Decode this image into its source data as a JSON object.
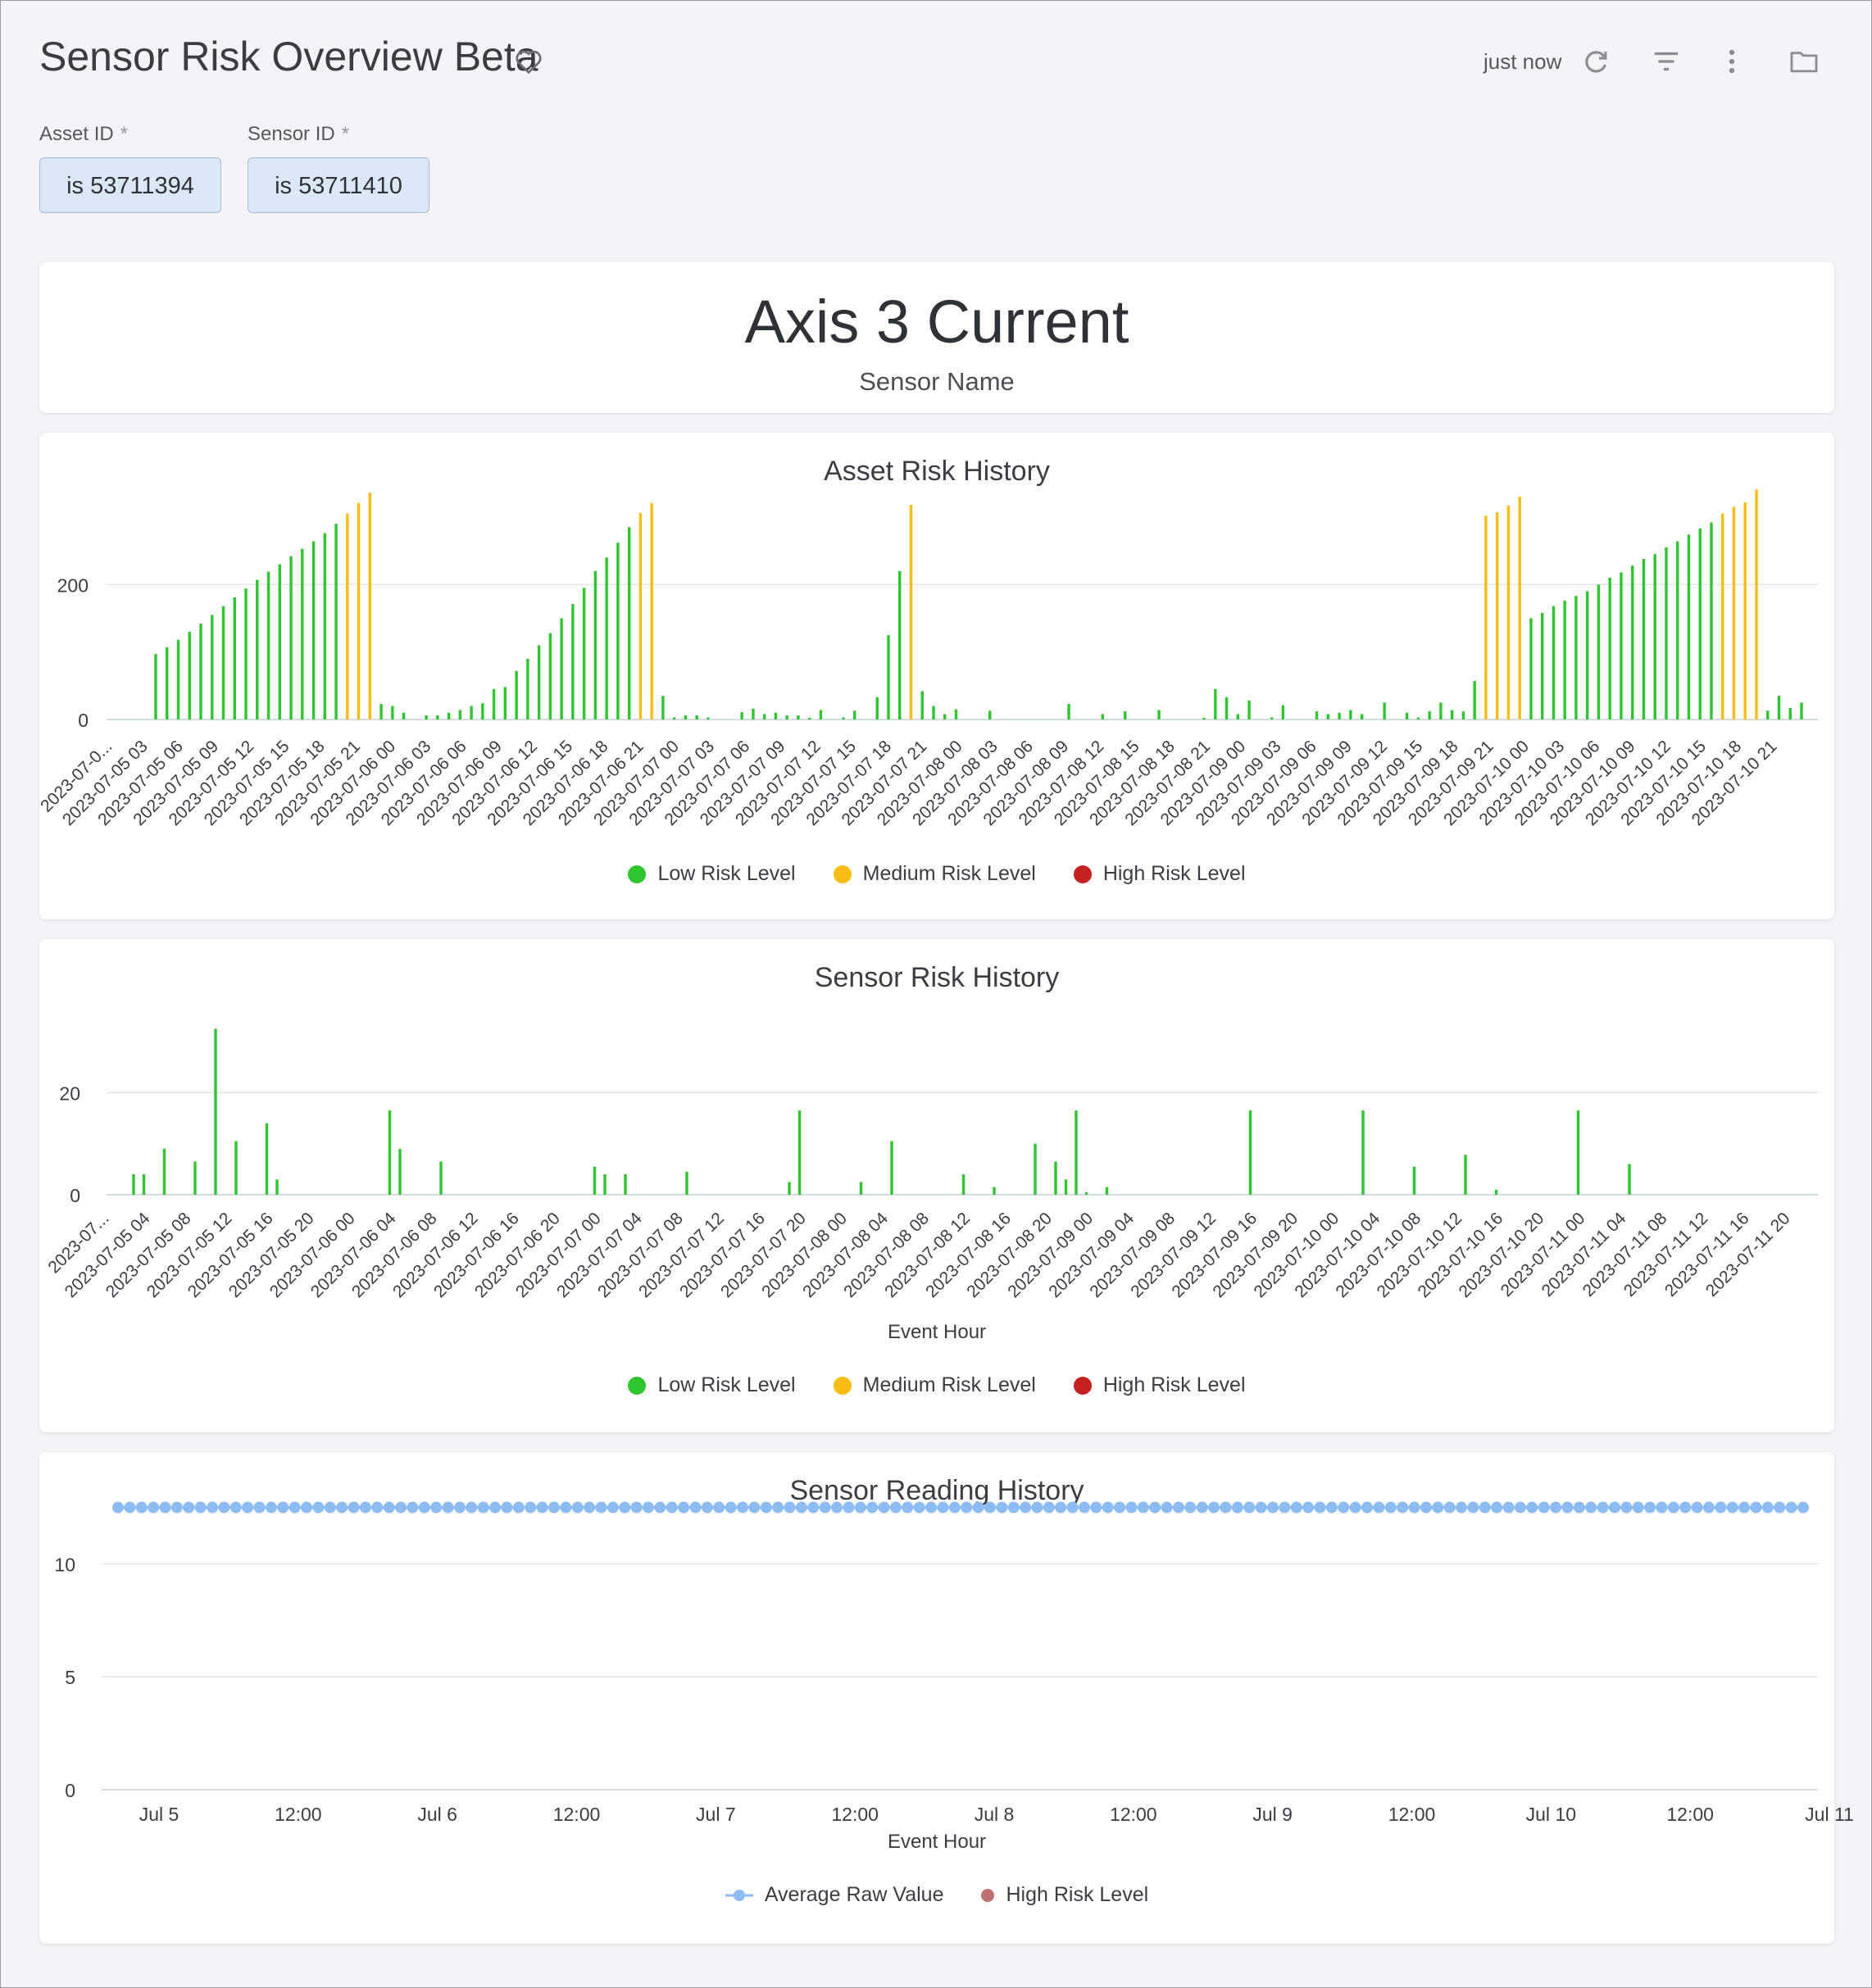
{
  "header": {
    "title": "Sensor Risk Overview Beta",
    "refreshed": "just now"
  },
  "filters": [
    {
      "label": "Asset ID",
      "required": "*",
      "value": "is 53711394"
    },
    {
      "label": "Sensor ID",
      "required": "*",
      "value": "is 53711410"
    }
  ],
  "kpi": {
    "value": "Axis 3 Current",
    "label": "Sensor Name"
  },
  "colors": {
    "low": "#2ec52e",
    "medium": "#f7bd13",
    "high": "#c62222",
    "reading": "#8cbcf2",
    "high_reading": "#c07070"
  },
  "asset_chart": {
    "title": "Asset Risk History",
    "legend": [
      "Low Risk Level",
      "Medium Risk Level",
      "High Risk Level"
    ]
  },
  "sensor_chart": {
    "title": "Sensor Risk History",
    "xlabel": "Event Hour",
    "legend": [
      "Low Risk Level",
      "Medium Risk Level",
      "High Risk Level"
    ]
  },
  "reading_chart": {
    "title": "Sensor Reading History",
    "xlabel": "Event Hour",
    "legend": [
      "Average Raw Value",
      "High Risk Level"
    ]
  },
  "chart_data": [
    {
      "type": "bar",
      "title": "Asset Risk History",
      "y_ticks": [
        0,
        200
      ],
      "ylim": [
        0,
        340
      ],
      "x_tick_labels": [
        "2023-07-0...",
        "2023-07-05 03",
        "2023-07-05 06",
        "2023-07-05 09",
        "2023-07-05 12",
        "2023-07-05 15",
        "2023-07-05 18",
        "2023-07-05 21",
        "2023-07-06 00",
        "2023-07-06 03",
        "2023-07-06 06",
        "2023-07-06 09",
        "2023-07-06 12",
        "2023-07-06 15",
        "2023-07-06 18",
        "2023-07-06 21",
        "2023-07-07 00",
        "2023-07-07 03",
        "2023-07-07 06",
        "2023-07-07 09",
        "2023-07-07 12",
        "2023-07-07 15",
        "2023-07-07 18",
        "2023-07-07 21",
        "2023-07-08 00",
        "2023-07-08 03",
        "2023-07-08 06",
        "2023-07-08 09",
        "2023-07-08 12",
        "2023-07-08 15",
        "2023-07-08 18",
        "2023-07-08 21",
        "2023-07-09 00",
        "2023-07-09 03",
        "2023-07-09 06",
        "2023-07-09 09",
        "2023-07-09 12",
        "2023-07-09 15",
        "2023-07-09 18",
        "2023-07-09 21",
        "2023-07-10 00",
        "2023-07-10 03",
        "2023-07-10 06",
        "2023-07-10 09",
        "2023-07-10 12",
        "2023-07-10 15",
        "2023-07-10 18",
        "2023-07-10 21"
      ],
      "values": [
        97,
        107,
        118,
        130,
        142,
        155,
        168,
        181,
        194,
        207,
        219,
        230,
        242,
        253,
        264,
        276,
        290,
        305,
        321,
        336,
        23,
        20,
        10,
        0,
        6,
        6,
        10,
        14,
        20,
        24,
        45,
        48,
        72,
        90,
        110,
        128,
        150,
        171,
        195,
        220,
        240,
        262,
        285,
        306,
        321,
        35,
        3,
        6,
        6,
        3,
        0,
        0,
        11,
        16,
        8,
        10,
        6,
        6,
        2,
        14,
        0,
        3,
        13,
        0,
        33,
        125,
        220,
        318,
        42,
        20,
        8,
        15,
        0,
        0,
        13,
        0,
        0,
        0,
        0,
        0,
        0,
        23,
        0,
        0,
        8,
        0,
        12,
        0,
        0,
        14,
        0,
        0,
        0,
        2,
        45,
        33,
        8,
        28,
        0,
        3,
        21,
        0,
        0,
        12,
        8,
        10,
        14,
        8,
        0,
        25,
        0,
        10,
        3,
        12,
        25,
        14,
        12,
        57,
        302,
        307,
        317,
        330,
        150,
        158,
        168,
        176,
        183,
        190,
        200,
        210,
        218,
        228,
        238,
        245,
        255,
        264,
        274,
        283,
        292,
        305,
        315,
        322,
        341,
        13,
        35,
        17,
        25
      ],
      "colors": [
        "L",
        "L",
        "L",
        "L",
        "L",
        "L",
        "L",
        "L",
        "L",
        "L",
        "L",
        "L",
        "L",
        "L",
        "L",
        "L",
        "L",
        "M",
        "M",
        "M",
        "L",
        "L",
        "L",
        "L",
        "L",
        "L",
        "L",
        "L",
        "L",
        "L",
        "L",
        "L",
        "L",
        "L",
        "L",
        "L",
        "L",
        "L",
        "L",
        "L",
        "L",
        "L",
        "L",
        "M",
        "M",
        "L",
        "L",
        "L",
        "L",
        "L",
        "L",
        "L",
        "L",
        "L",
        "L",
        "L",
        "L",
        "L",
        "L",
        "L",
        "L",
        "L",
        "L",
        "L",
        "L",
        "L",
        "L",
        "M",
        "L",
        "L",
        "L",
        "L",
        "L",
        "L",
        "L",
        "L",
        "L",
        "L",
        "L",
        "L",
        "L",
        "L",
        "L",
        "L",
        "L",
        "L",
        "L",
        "L",
        "L",
        "L",
        "L",
        "L",
        "L",
        "L",
        "L",
        "L",
        "L",
        "L",
        "L",
        "L",
        "L",
        "L",
        "L",
        "L",
        "L",
        "L",
        "L",
        "L",
        "L",
        "L",
        "L",
        "L",
        "L",
        "L",
        "L",
        "L",
        "L",
        "L",
        "M",
        "M",
        "M",
        "M",
        "L",
        "L",
        "L",
        "L",
        "L",
        "L",
        "L",
        "L",
        "L",
        "L",
        "L",
        "L",
        "L",
        "L",
        "L",
        "L",
        "L",
        "M",
        "M",
        "M",
        "M",
        "L",
        "L",
        "L",
        "L"
      ]
    },
    {
      "type": "bar",
      "title": "Sensor Risk History",
      "xlabel": "Event Hour",
      "y_ticks": [
        0,
        20
      ],
      "ylim": [
        0,
        34
      ],
      "x_tick_labels": [
        "2023-07...",
        "2023-07-05 04",
        "2023-07-05 08",
        "2023-07-05 12",
        "2023-07-05 16",
        "2023-07-05 20",
        "2023-07-06 00",
        "2023-07-06 04",
        "2023-07-06 08",
        "2023-07-06 12",
        "2023-07-06 16",
        "2023-07-06 20",
        "2023-07-07 00",
        "2023-07-07 04",
        "2023-07-07 08",
        "2023-07-07 12",
        "2023-07-07 16",
        "2023-07-07 20",
        "2023-07-08 00",
        "2023-07-08 04",
        "2023-07-08 08",
        "2023-07-08 12",
        "2023-07-08 16",
        "2023-07-08 20",
        "2023-07-09 00",
        "2023-07-09 04",
        "2023-07-09 08",
        "2023-07-09 12",
        "2023-07-09 16",
        "2023-07-09 20",
        "2023-07-10 00",
        "2023-07-10 04",
        "2023-07-10 08",
        "2023-07-10 12",
        "2023-07-10 16",
        "2023-07-10 20",
        "2023-07-11 00",
        "2023-07-11 04",
        "2023-07-11 08",
        "2023-07-11 12",
        "2023-07-11 16",
        "2023-07-11 20"
      ],
      "bars": [
        [
          2,
          4
        ],
        [
          3,
          4
        ],
        [
          5,
          9
        ],
        [
          8,
          6.5
        ],
        [
          10,
          32.5
        ],
        [
          12,
          10.5
        ],
        [
          15,
          14
        ],
        [
          16,
          3
        ],
        [
          27,
          16.5
        ],
        [
          28,
          9
        ],
        [
          32,
          6.5
        ],
        [
          47,
          5.5
        ],
        [
          48,
          4
        ],
        [
          50,
          4
        ],
        [
          56,
          4.5
        ],
        [
          66,
          2.5
        ],
        [
          67,
          16.5
        ],
        [
          73,
          2.5
        ],
        [
          76,
          10.5
        ],
        [
          83,
          4
        ],
        [
          86,
          1.5
        ],
        [
          90,
          10
        ],
        [
          92,
          6.5
        ],
        [
          93,
          3
        ],
        [
          94,
          16.5
        ],
        [
          95,
          0.5
        ],
        [
          97,
          1.5
        ],
        [
          111,
          16.5
        ],
        [
          122,
          16.5
        ],
        [
          127,
          5.5
        ],
        [
          132,
          7.8
        ],
        [
          135,
          1
        ],
        [
          143,
          16.5
        ],
        [
          148,
          6
        ]
      ],
      "total_slots": 168
    },
    {
      "type": "line",
      "title": "Sensor Reading History",
      "xlabel": "Event Hour",
      "y_ticks": [
        0,
        5,
        10
      ],
      "ylim": [
        0,
        13.5
      ],
      "x_tick_labels": [
        "Jul 5",
        "12:00",
        "Jul 6",
        "12:00",
        "Jul 7",
        "12:00",
        "Jul 8",
        "12:00",
        "Jul 9",
        "12:00",
        "Jul 10",
        "12:00",
        "Jul 11"
      ],
      "series": [
        {
          "name": "Average Raw Value",
          "constant_value": 12.5,
          "point_count": 144
        }
      ]
    }
  ]
}
